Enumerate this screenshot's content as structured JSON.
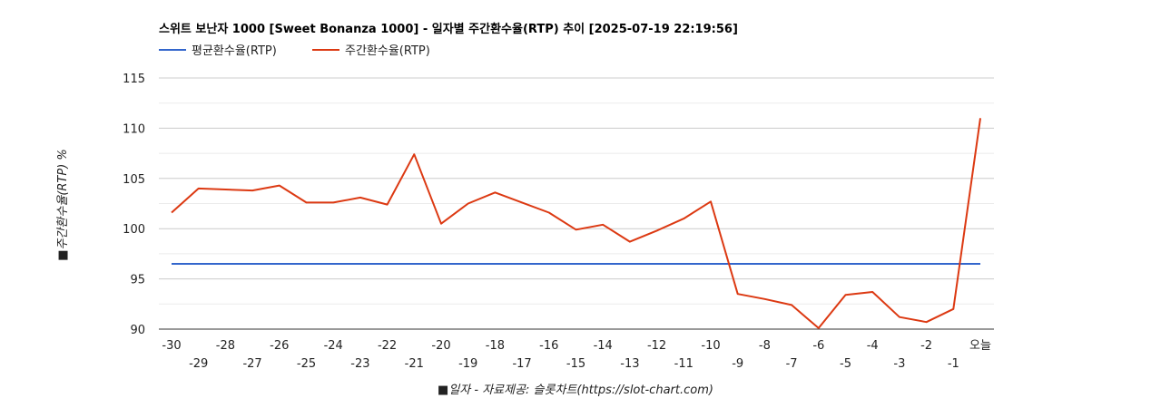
{
  "chart_data": {
    "type": "line",
    "title": "스위트 보난자 1000 [Sweet Bonanza 1000] - 일자별 주간환수율(RTP) 추이 [2025-07-19 22:19:56]",
    "xlabel": "■일자 - 자료제공: 슬롯차트(https://slot-chart.com)",
    "ylabel": "■주간환수율(RTP) %",
    "categories": [
      "-30",
      "-29",
      "-28",
      "-27",
      "-26",
      "-25",
      "-24",
      "-23",
      "-22",
      "-21",
      "-20",
      "-19",
      "-18",
      "-17",
      "-16",
      "-15",
      "-14",
      "-13",
      "-12",
      "-11",
      "-10",
      "-9",
      "-8",
      "-7",
      "-6",
      "-5",
      "-4",
      "-3",
      "-2",
      "-1",
      "오늘"
    ],
    "ylim": [
      90,
      115
    ],
    "yticks": [
      "90",
      "95",
      "100",
      "105",
      "110",
      "115"
    ],
    "grid": true,
    "legend_position": "top-left",
    "series": [
      {
        "name": "평균환수율(RTP)",
        "color": "#3366cc",
        "values": [
          96.5,
          96.5,
          96.5,
          96.5,
          96.5,
          96.5,
          96.5,
          96.5,
          96.5,
          96.5,
          96.5,
          96.5,
          96.5,
          96.5,
          96.5,
          96.5,
          96.5,
          96.5,
          96.5,
          96.5,
          96.5,
          96.5,
          96.5,
          96.5,
          96.5,
          96.5,
          96.5,
          96.5,
          96.5,
          96.5,
          96.5
        ]
      },
      {
        "name": "주간환수율(RTP)",
        "color": "#dc3912",
        "values": [
          101.6,
          104.0,
          103.9,
          103.8,
          104.3,
          102.6,
          102.6,
          103.1,
          102.4,
          107.4,
          100.5,
          102.5,
          103.6,
          102.6,
          101.6,
          99.9,
          100.4,
          98.7,
          99.8,
          101.0,
          102.7,
          93.5,
          93.0,
          92.4,
          90.1,
          93.4,
          93.7,
          91.2,
          90.7,
          92.0,
          111.0
        ]
      }
    ]
  }
}
